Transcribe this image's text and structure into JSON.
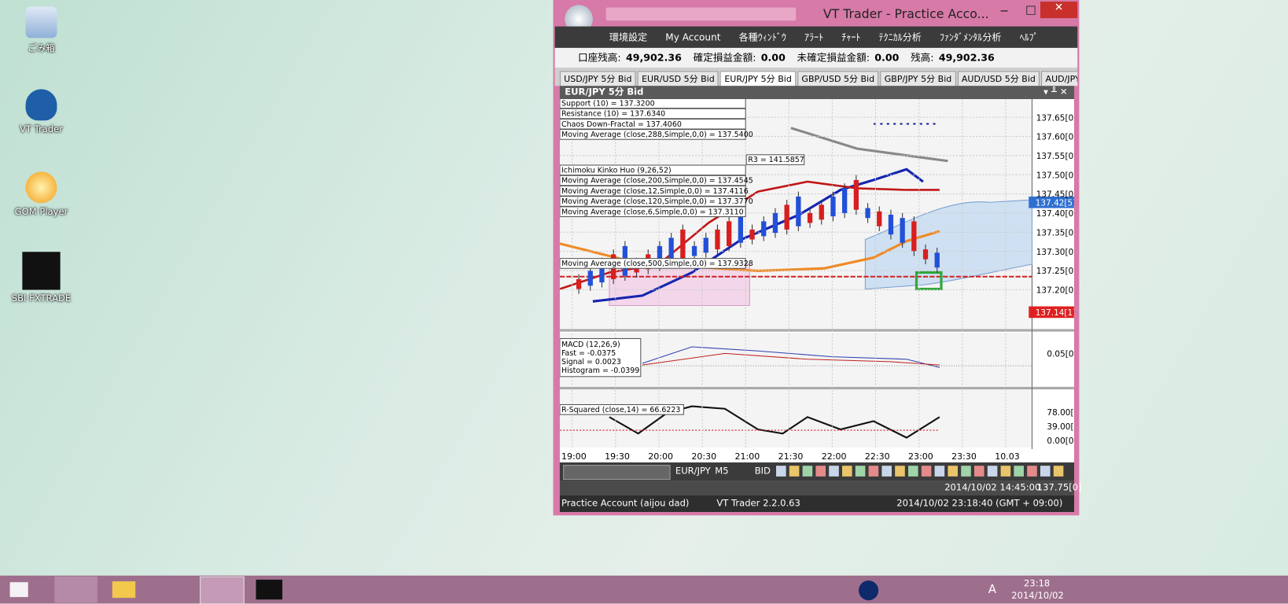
{
  "desktop": {
    "icons": [
      "ごみ箱",
      "VT Trader",
      "GOM Player",
      "SBI FXTRADE"
    ]
  },
  "window": {
    "title": "VT Trader - Practice Acco...",
    "menu": [
      "環境設定",
      "My Account",
      "各種ｳｨﾝﾄﾞｳ",
      "ｱﾗｰﾄ",
      "ﾁｬｰﾄ",
      "ﾃｸﾆｶﾙ分析",
      "ﾌｧﾝﾀﾞﾒﾝﾀﾙ分析",
      "ﾍﾙﾌﾟ"
    ],
    "account": [
      [
        "口座残高:",
        "49,902.36"
      ],
      [
        "確定損益金額:",
        "0.00"
      ],
      [
        "未確定損益金額:",
        "0.00"
      ],
      [
        "残高:",
        "49,902.36"
      ]
    ],
    "tabs": [
      "USD/JPY 5分 Bid",
      "EUR/USD 5分 Bid",
      "EUR/JPY 5分 Bid",
      "GBP/USD 5分 Bid",
      "GBP/JPY 5分 Bid",
      "AUD/USD 5分 Bid",
      "AUD/JPY 5分 Bid"
    ],
    "chart_title": "EUR/JPY 5分 Bid",
    "indicator_labels": [
      "Support (10) = 137.3200",
      "Resistance (10) = 137.6340",
      "Chaos Down-Fractal = 137.4060",
      "Moving Average (close,288,Simple,0,0) = 137.5400",
      "R3 = 141.5857",
      "Ichimoku Kinko Huo (9,26,52)",
      "Moving Average (close,200,Simple,0,0) = 137.4545",
      "Moving Average (close,12,Simple,0,0) = 137.4116",
      "Moving Average (close,120,Simple,0,0) = 137.3770",
      "Moving Average (close,6,Simple,0,0) = 137.3110",
      "Moving Average (close,500,Simple,0,0) = 137.9328"
    ],
    "price_axis": [
      "137.65[0]",
      "137.60[0]",
      "137.55[0]",
      "137.50[0]",
      "137.45[0]",
      "137.40[0]",
      "137.35[0]",
      "137.30[0]",
      "137.25[0]",
      "137.20[0]"
    ],
    "current_price_tag": "137.42[5]",
    "bid_tag": "137.14[1]",
    "macd_labels": [
      "MACD (12,26,9)",
      "Fast = -0.0375",
      "Signal = 0.0023",
      "Histogram = -0.0399"
    ],
    "macd_axis": "0.05[0]",
    "rsq_label": "R-Squared (close,14) = 66.6223",
    "rsq_axis": [
      "78.00[0]",
      "39.00[0]",
      "0.00[0]"
    ],
    "time_axis": [
      "19:00",
      "19:30",
      "20:00",
      "20:30",
      "21:00",
      "21:30",
      "22:00",
      "22:30",
      "23:00",
      "23:30",
      "10.03"
    ],
    "toolbar": [
      "EUR/JPY",
      "M5",
      "BID"
    ],
    "info_line": [
      "2014/10/02 14:45:00",
      "137.75[0]"
    ],
    "status": [
      "Practice Account (aijou dad)",
      "VT Trader 2.2.0.63",
      "2014/10/02 23:18:40 (GMT + 09:00)"
    ]
  },
  "taskbar": {
    "ime": "A",
    "time": "23:18",
    "date": "2014/10/02"
  }
}
